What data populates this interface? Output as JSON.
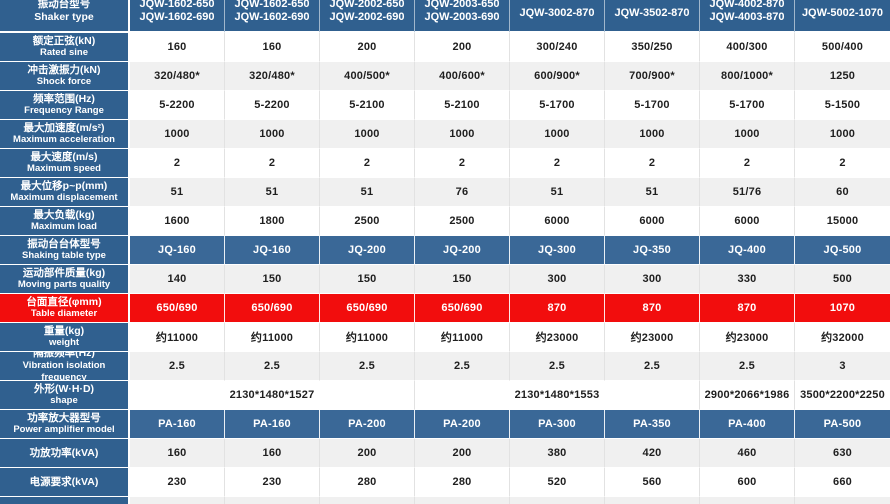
{
  "colors": {
    "header_blue": "#30608f",
    "row_blue": "#3a6897",
    "row_red": "#f20d0d",
    "row_gray": "#f0f0f0",
    "row_white": "#ffffff",
    "separator_light": "#e2e2e2",
    "value_text": "#1f1f1f"
  },
  "table": {
    "header": {
      "label_cn": "振动台型号",
      "label_en": "Shaker type",
      "columns": [
        {
          "line1": "JQW-1602-650",
          "line2": "JQW-1602-690"
        },
        {
          "line1": "JQW-1602-650",
          "line2": "JQW-1602-690"
        },
        {
          "line1": "JQW-2002-650",
          "line2": "JQW-2002-690"
        },
        {
          "line1": "JQW-2003-650",
          "line2": "JQW-2003-690"
        },
        {
          "line1": "JQW-3002-870",
          "line2": ""
        },
        {
          "line1": "JQW-3502-870",
          "line2": ""
        },
        {
          "line1": "JQW-4002-870",
          "line2": "JQW-4003-870"
        },
        {
          "line1": "JQW-5002-1070",
          "line2": ""
        }
      ]
    },
    "rows": [
      {
        "cn": "额定正弦(kN)",
        "en": "Rated sine",
        "style": "white",
        "values": [
          "160",
          "160",
          "200",
          "200",
          "300/240",
          "350/250",
          "400/300",
          "500/400"
        ]
      },
      {
        "cn": "冲击激振力(kN)",
        "en": "Shock force",
        "style": "gray",
        "values": [
          "320/480*",
          "320/480*",
          "400/500*",
          "400/600*",
          "600/900*",
          "700/900*",
          "800/1000*",
          "1250"
        ]
      },
      {
        "cn": "频率范围(Hz)",
        "en": "Frequency Range",
        "style": "white",
        "values": [
          "5-2200",
          "5-2200",
          "5-2100",
          "5-2100",
          "5-1700",
          "5-1700",
          "5-1700",
          "5-1500"
        ]
      },
      {
        "cn": "最大加速度(m/s²)",
        "en": "Maximum acceleration",
        "style": "gray",
        "values": [
          "1000",
          "1000",
          "1000",
          "1000",
          "1000",
          "1000",
          "1000",
          "1000"
        ]
      },
      {
        "cn": "最大速度(m/s)",
        "en": "Maximum speed",
        "style": "white",
        "values": [
          "2",
          "2",
          "2",
          "2",
          "2",
          "2",
          "2",
          "2"
        ]
      },
      {
        "cn": "最大位移p~p(mm)",
        "en": "Maximum displacement",
        "style": "gray",
        "values": [
          "51",
          "51",
          "51",
          "76",
          "51",
          "51",
          "51/76",
          "60"
        ]
      },
      {
        "cn": "最大负载(kg)",
        "en": "Maximum load",
        "style": "white",
        "values": [
          "1600",
          "1800",
          "2500",
          "2500",
          "6000",
          "6000",
          "6000",
          "15000"
        ]
      },
      {
        "cn": "振动台台体型号",
        "en": "Shaking table type",
        "style": "blue",
        "values": [
          "JQ-160",
          "JQ-160",
          "JQ-200",
          "JQ-200",
          "JQ-300",
          "JQ-350",
          "JQ-400",
          "JQ-500"
        ]
      },
      {
        "cn": "运动部件质量(kg)",
        "en": "Moving parts quality",
        "style": "gray",
        "values": [
          "140",
          "150",
          "150",
          "150",
          "300",
          "300",
          "330",
          "500"
        ]
      },
      {
        "cn": "台面直径(φmm)",
        "en": "Table diameter",
        "style": "red",
        "values": [
          "650/690",
          "650/690",
          "650/690",
          "650/690",
          "870",
          "870",
          "870",
          "1070"
        ]
      },
      {
        "cn": "重量(kg)",
        "en": "weight",
        "style": "white",
        "values": [
          "约11000",
          "约11000",
          "约11000",
          "约11000",
          "约23000",
          "约23000",
          "约23000",
          "约32000"
        ]
      },
      {
        "cn": "隔振频率(Hz)",
        "en": "Vibration isolation frequency",
        "style": "gray",
        "values": [
          "2.5",
          "2.5",
          "2.5",
          "2.5",
          "2.5",
          "2.5",
          "2.5",
          "3"
        ]
      },
      {
        "cn": "外形(W·H·D)",
        "en": "shape",
        "style": "white",
        "spans": [
          {
            "text": "2130*1480*1527",
            "cols": 3
          },
          {
            "text": "2130*1480*1553",
            "cols": 3
          },
          {
            "text": "2900*2066*1986",
            "cols": 1
          },
          {
            "text": "3500*2200*2250",
            "cols": 1
          }
        ]
      },
      {
        "cn": "功率放大器型号",
        "en": "Power amplifier model",
        "style": "blue",
        "values": [
          "PA-160",
          "PA-160",
          "PA-200",
          "PA-200",
          "PA-300",
          "PA-350",
          "PA-400",
          "PA-500"
        ]
      },
      {
        "cn": "功放功率(kVA)",
        "en": "",
        "style": "gray",
        "values": [
          "160",
          "160",
          "200",
          "200",
          "380",
          "420",
          "460",
          "630"
        ]
      },
      {
        "cn": "电源要求(kVA)",
        "en": "",
        "style": "white",
        "values": [
          "230",
          "230",
          "280",
          "280",
          "520",
          "560",
          "600",
          "660"
        ]
      }
    ],
    "partial_row_visible": true
  }
}
